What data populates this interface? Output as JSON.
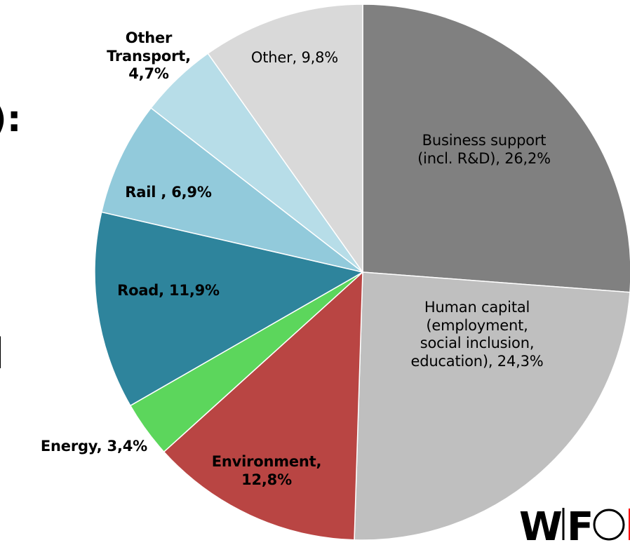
{
  "chart_data": {
    "type": "pie",
    "values": [
      26.2,
      24.3,
      12.8,
      3.4,
      11.9,
      6.9,
      4.7,
      9.8
    ],
    "value_labels": [
      "Business support (incl. R&D), 26,2%",
      "Human capital (employment, social inclusion, education), 24,3%",
      "Environment, 12,8%",
      "Energy, 3,4%",
      "Road, 11,9%",
      "Rail , 6,9%",
      "Other Transport, 4,7%",
      "Other, 9,8%"
    ],
    "colors": [
      "#808080",
      "#bfbfbf",
      "#b94543",
      "#5cd65c",
      "#2e849c",
      "#92cadb",
      "#b7dde8",
      "#d9d9d9"
    ],
    "bold": [
      false,
      false,
      true,
      true,
      true,
      true,
      true,
      false
    ]
  },
  "fragments": [
    "):",
    "l"
  ],
  "logo": [
    "W",
    "F"
  ]
}
